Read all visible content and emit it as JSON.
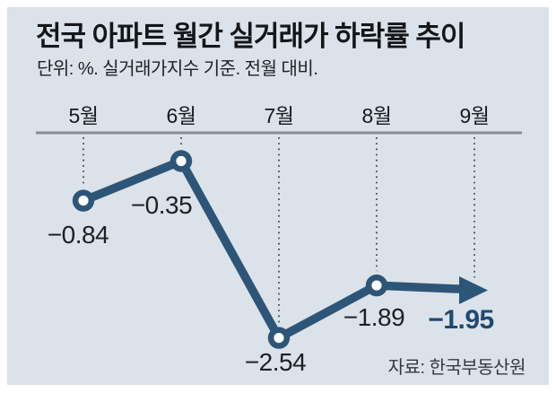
{
  "panel": {
    "title": "전국 아파트 월간 실거래가 하락률 추이",
    "subtitle": "단위: %. 실거래가지수 기준. 전월 대비.",
    "source": "자료: 한국부동산원"
  },
  "colors": {
    "background": "#dce2e9",
    "frame": "#ffffff",
    "line": "#2d5578",
    "emphasis": "#1e4973",
    "axis": "#888d94",
    "gridline": "#474d55",
    "marker_core": "#ffffff"
  },
  "chart_data": {
    "type": "line",
    "title": "전국 아파트 월간 실거래가 하락률 추이",
    "unit_note": "단위: %. 실거래가지수 기준. 전월 대비.",
    "source": "자료: 한국부동산원",
    "categories": [
      "5월",
      "6월",
      "7월",
      "8월",
      "9월"
    ],
    "values": [
      -0.84,
      -0.35,
      -2.54,
      -1.89,
      -1.95
    ],
    "labels": [
      "−0.84",
      "−0.35",
      "−2.54",
      "−1.89",
      "−1.95"
    ],
    "ylim": [
      -3,
      0
    ],
    "grid": "dotted-vertical-from-top-axis",
    "legend": "none",
    "last_point_style": "arrow-right",
    "emphasized_label": "−1.95"
  }
}
